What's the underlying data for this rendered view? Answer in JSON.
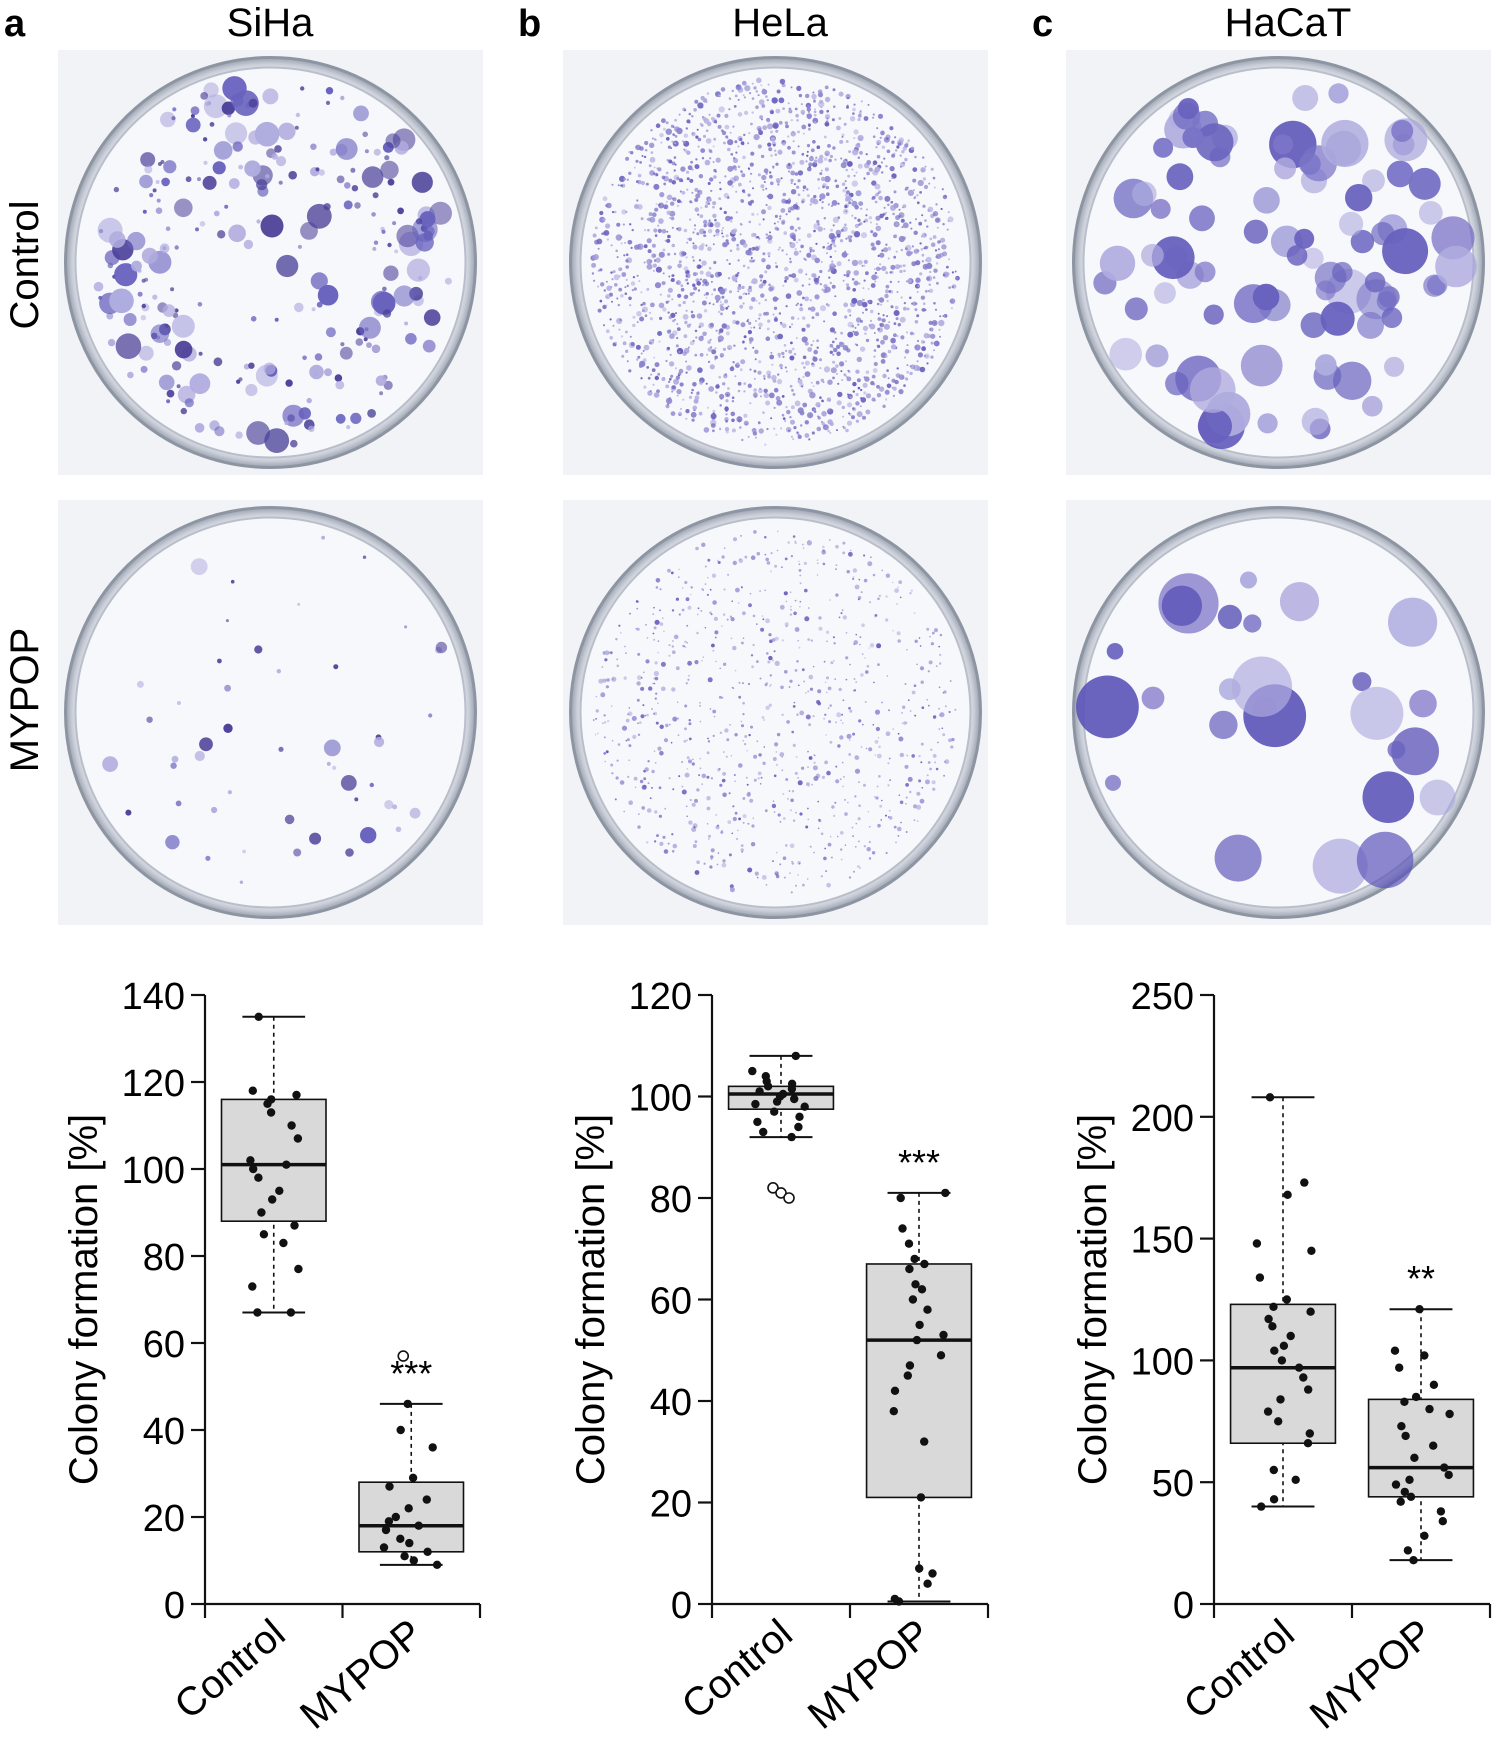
{
  "panels": [
    {
      "letter": "a",
      "cell_line": "SiHa"
    },
    {
      "letter": "b",
      "cell_line": "HeLa"
    },
    {
      "letter": "c",
      "cell_line": "HaCaT"
    }
  ],
  "row_labels": [
    "Control",
    "MYPOP"
  ],
  "colors": {
    "box_fill": "#d9d9d9",
    "stain_dark": "#3a2f8f",
    "stain_mid": "#5a52b8",
    "stain_light": "#a8a4dc",
    "plate_bg": "#f2f3f6"
  },
  "chart_data": [
    {
      "type": "box",
      "panel": "a",
      "ylabel": "Colony formation [%]",
      "ylim": [
        0,
        140
      ],
      "yticks": [
        0,
        20,
        40,
        60,
        80,
        100,
        120,
        140
      ],
      "categories": [
        "Control",
        "MYPOP"
      ],
      "significance": [
        "",
        "***"
      ],
      "boxes": [
        {
          "name": "Control",
          "whisker_low": 67,
          "q1": 88,
          "median": 101,
          "q3": 116,
          "whisker_high": 135,
          "points": [
            135,
            118,
            117,
            116,
            115,
            113,
            110,
            107,
            102,
            101,
            100,
            98,
            95,
            93,
            90,
            87,
            85,
            83,
            77,
            73,
            67,
            67
          ],
          "outliers": []
        },
        {
          "name": "MYPOP",
          "whisker_low": 9,
          "q1": 12,
          "median": 18,
          "q3": 28,
          "whisker_high": 46,
          "points": [
            46,
            40,
            36,
            29,
            27,
            24,
            22,
            20,
            19,
            18,
            17,
            15,
            14,
            13,
            12,
            11,
            10,
            9
          ],
          "outliers": [
            57
          ]
        }
      ]
    },
    {
      "type": "box",
      "panel": "b",
      "ylabel": "Colony formation [%]",
      "ylim": [
        0,
        120
      ],
      "yticks": [
        0,
        20,
        40,
        60,
        80,
        100,
        120
      ],
      "categories": [
        "Control",
        "MYPOP"
      ],
      "significance": [
        "",
        "***"
      ],
      "boxes": [
        {
          "name": "Control",
          "whisker_low": 92,
          "q1": 97.5,
          "median": 100.5,
          "q3": 102,
          "whisker_high": 108,
          "points": [
            108,
            105,
            104,
            103,
            102.5,
            102,
            101.5,
            101,
            100.5,
            100,
            99.5,
            99,
            98.5,
            98,
            97,
            96,
            95,
            94,
            93,
            92
          ],
          "outliers": [
            82,
            81,
            80
          ]
        },
        {
          "name": "MYPOP",
          "whisker_low": 0.5,
          "q1": 21,
          "median": 52,
          "q3": 67,
          "whisker_high": 81,
          "points": [
            81,
            80,
            74,
            71,
            68,
            67,
            66,
            63,
            62,
            60,
            58,
            55,
            53,
            52,
            49,
            47,
            45,
            42,
            38,
            32,
            21,
            7,
            6,
            4,
            1,
            0.5
          ],
          "outliers": []
        }
      ]
    },
    {
      "type": "box",
      "panel": "c",
      "ylabel": "Colony formation [%]",
      "ylim": [
        0,
        250
      ],
      "yticks": [
        0,
        50,
        100,
        150,
        200,
        250
      ],
      "categories": [
        "Control",
        "MYPOP"
      ],
      "significance": [
        "",
        "**"
      ],
      "boxes": [
        {
          "name": "Control",
          "whisker_low": 40,
          "q1": 66,
          "median": 97,
          "q3": 123,
          "whisker_high": 208,
          "points": [
            208,
            173,
            168,
            148,
            145,
            134,
            125,
            122,
            120,
            117,
            114,
            110,
            106,
            104,
            100,
            97,
            93,
            88,
            84,
            79,
            75,
            70,
            66,
            55,
            51,
            43,
            40
          ],
          "outliers": []
        },
        {
          "name": "MYPOP",
          "whisker_low": 18,
          "q1": 44,
          "median": 56,
          "q3": 84,
          "whisker_high": 121,
          "points": [
            121,
            104,
            102,
            97,
            90,
            85,
            83,
            80,
            78,
            73,
            69,
            65,
            60,
            56,
            53,
            51,
            49,
            46,
            44,
            42,
            38,
            34,
            28,
            22,
            18
          ],
          "outliers": []
        }
      ]
    }
  ]
}
